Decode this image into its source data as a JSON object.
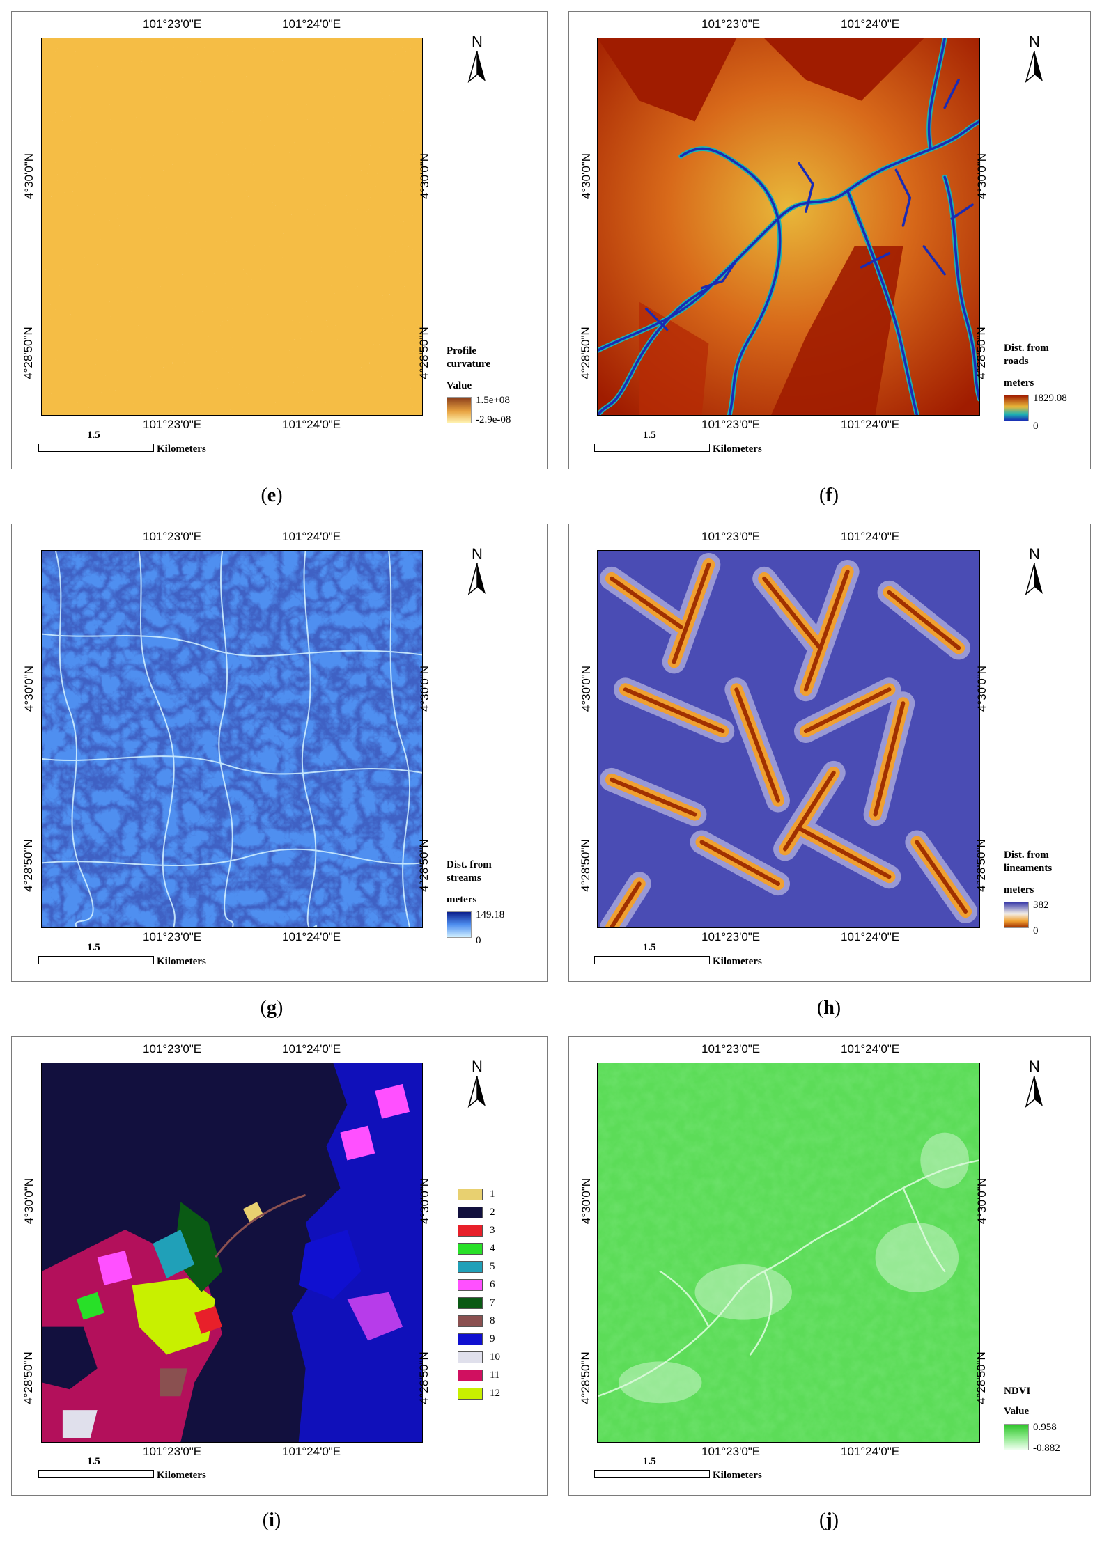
{
  "panels": [
    {
      "id": "e",
      "caption": "e",
      "lon_labels": [
        "101°23'0\"E",
        "101°24'0\"E"
      ],
      "lat_labels": [
        "4°30'0\"N",
        "4°28'50\"N"
      ],
      "north": "N",
      "legend_title": "Profile curvature",
      "legend_sub": "Value",
      "legend_high": "1.5e+08",
      "legend_low": "-2.9e-08",
      "scale_number": "1.5",
      "scale_unit": "Kilometers",
      "colors": {
        "base": "#f5bd45",
        "ramp_top": "#8a3d1a",
        "ramp_mid": "#e8a341",
        "ramp_bottom": "#fff2b0"
      }
    },
    {
      "id": "f",
      "caption": "f",
      "lon_labels": [
        "101°23'0\"E",
        "101°24'0\"E"
      ],
      "lat_labels": [
        "4°30'0\"N",
        "4°28'50\"N"
      ],
      "north": "N",
      "legend_title": "Dist. from roads",
      "legend_sub": "meters",
      "legend_high": "1829.08",
      "legend_low": "0",
      "scale_number": "1.5",
      "scale_unit": "Kilometers",
      "colors": {
        "ramp_top": "#a01c00",
        "ramp_mid": "#e8b83a",
        "ramp_mid2": "#1db3b3",
        "ramp_bottom": "#1a2bb5"
      }
    },
    {
      "id": "g",
      "caption": "g",
      "lon_labels": [
        "101°23'0\"E",
        "101°24'0\"E"
      ],
      "lat_labels": [
        "4°30'0\"N",
        "4°28'50\"N"
      ],
      "north": "N",
      "legend_title": "Dist. from streams",
      "legend_sub": "meters",
      "legend_high": "149.18",
      "legend_low": "0",
      "scale_number": "1.5",
      "scale_unit": "Kilometers",
      "colors": {
        "ramp_top": "#0a1e8c",
        "ramp_bottom": "#cfeeff"
      }
    },
    {
      "id": "h",
      "caption": "h",
      "lon_labels": [
        "101°23'0\"E",
        "101°24'0\"E"
      ],
      "lat_labels": [
        "4°30'0\"N",
        "4°28'50\"N"
      ],
      "north": "N",
      "legend_title": "Dist. from lineaments",
      "legend_sub": "meters",
      "legend_high": "382",
      "legend_low": "0",
      "scale_number": "1.5",
      "scale_unit": "Kilometers",
      "colors": {
        "ramp_top": "#3a3ca8",
        "ramp_mid": "#f2eee8",
        "ramp_mid2": "#f0a030",
        "ramp_bottom": "#a03000"
      }
    },
    {
      "id": "i",
      "caption": "i",
      "lon_labels": [
        "101°23'0\"E",
        "101°24'0\"E"
      ],
      "lat_labels": [
        "4°30'0\"N",
        "4°28'50\"N"
      ],
      "north": "N",
      "scale_number": "1.5",
      "scale_unit": "Kilometers",
      "classes": [
        {
          "label": "1",
          "color": "#e8d070"
        },
        {
          "label": "2",
          "color": "#12103e"
        },
        {
          "label": "3",
          "color": "#e8202a"
        },
        {
          "label": "4",
          "color": "#28e028"
        },
        {
          "label": "5",
          "color": "#20a0b8"
        },
        {
          "label": "6",
          "color": "#ff50ff"
        },
        {
          "label": "7",
          "color": "#0a5a14"
        },
        {
          "label": "8",
          "color": "#8a5050"
        },
        {
          "label": "9",
          "color": "#1010d0"
        },
        {
          "label": "10",
          "color": "#e0e0ec"
        },
        {
          "label": "11",
          "color": "#d01060"
        },
        {
          "label": "12",
          "color": "#c8f000"
        }
      ]
    },
    {
      "id": "j",
      "caption": "j",
      "lon_labels": [
        "101°23'0\"E",
        "101°24'0\"E"
      ],
      "lat_labels": [
        "4°30'0\"N",
        "4°28'50\"N"
      ],
      "north": "N",
      "legend_title": "NDVI",
      "legend_sub": "Value",
      "legend_high": "0.958",
      "legend_low": "-0.882",
      "scale_number": "1.5",
      "scale_unit": "Kilometers",
      "colors": {
        "base": "#5cdc58",
        "ramp_top": "#2ec42a",
        "ramp_bottom": "#f0fff0"
      }
    }
  ]
}
